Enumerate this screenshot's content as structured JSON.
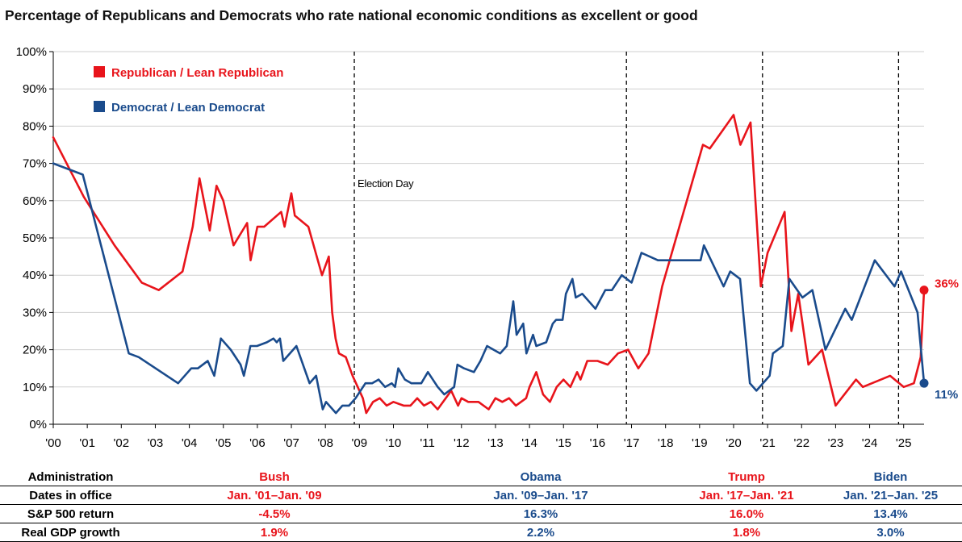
{
  "title": "Percentage of Republicans and Democrats who rate national economic conditions as excellent or good",
  "colors": {
    "republican": "#e8141b",
    "democrat": "#1a4b8c"
  },
  "chart_data": {
    "type": "line",
    "x_tick_labels": [
      "'00",
      "'01",
      "'02",
      "'03",
      "'04",
      "'05",
      "'06",
      "'07",
      "'08",
      "'09",
      "'10",
      "'11",
      "'12",
      "'13",
      "'14",
      "'15",
      "'16",
      "'17",
      "'18",
      "'19",
      "'20",
      "'21",
      "'22",
      "'23",
      "'24",
      "'25"
    ],
    "y_tick_labels": [
      "0%",
      "10%",
      "20%",
      "30%",
      "40%",
      "50%",
      "60%",
      "70%",
      "80%",
      "90%",
      "100%"
    ],
    "ylim": [
      0,
      100
    ],
    "xlim": [
      2000,
      2025.6
    ],
    "legend_position": "top-left",
    "annotation": "Election Day",
    "election_lines": [
      2008.85,
      2016.85,
      2020.85,
      2024.85
    ],
    "series": [
      {
        "name": "Republican / Lean Republican",
        "color": "#e8141b",
        "end_label": "36%",
        "points": [
          [
            2000.0,
            77
          ],
          [
            2000.9,
            61
          ],
          [
            2001.8,
            48
          ],
          [
            2002.6,
            38
          ],
          [
            2003.1,
            36
          ],
          [
            2003.8,
            41
          ],
          [
            2004.1,
            53
          ],
          [
            2004.3,
            66
          ],
          [
            2004.6,
            52
          ],
          [
            2004.8,
            64
          ],
          [
            2005.0,
            60
          ],
          [
            2005.3,
            48
          ],
          [
            2005.7,
            54
          ],
          [
            2005.8,
            44
          ],
          [
            2006.0,
            53
          ],
          [
            2006.2,
            53
          ],
          [
            2006.7,
            57
          ],
          [
            2006.8,
            53
          ],
          [
            2007.0,
            62
          ],
          [
            2007.1,
            56
          ],
          [
            2007.5,
            53
          ],
          [
            2007.9,
            40
          ],
          [
            2008.1,
            45
          ],
          [
            2008.2,
            30
          ],
          [
            2008.3,
            23
          ],
          [
            2008.4,
            19
          ],
          [
            2008.6,
            18
          ],
          [
            2008.8,
            13
          ],
          [
            2009.1,
            7
          ],
          [
            2009.2,
            3
          ],
          [
            2009.4,
            6
          ],
          [
            2009.6,
            7
          ],
          [
            2009.8,
            5
          ],
          [
            2010.0,
            6
          ],
          [
            2010.3,
            5
          ],
          [
            2010.5,
            5
          ],
          [
            2010.7,
            7
          ],
          [
            2010.9,
            5
          ],
          [
            2011.1,
            6
          ],
          [
            2011.3,
            4
          ],
          [
            2011.7,
            9
          ],
          [
            2011.9,
            5
          ],
          [
            2012.0,
            7
          ],
          [
            2012.2,
            6
          ],
          [
            2012.5,
            6
          ],
          [
            2012.8,
            4
          ],
          [
            2013.0,
            7
          ],
          [
            2013.2,
            6
          ],
          [
            2013.4,
            7
          ],
          [
            2013.6,
            5
          ],
          [
            2013.9,
            7
          ],
          [
            2014.0,
            10
          ],
          [
            2014.2,
            14
          ],
          [
            2014.4,
            8
          ],
          [
            2014.6,
            6
          ],
          [
            2014.8,
            10
          ],
          [
            2015.0,
            12
          ],
          [
            2015.2,
            10
          ],
          [
            2015.4,
            14
          ],
          [
            2015.5,
            12
          ],
          [
            2015.7,
            17
          ],
          [
            2016.0,
            17
          ],
          [
            2016.3,
            16
          ],
          [
            2016.6,
            19
          ],
          [
            2016.9,
            20
          ],
          [
            2017.2,
            15
          ],
          [
            2017.5,
            19
          ],
          [
            2017.9,
            37
          ],
          [
            2019.1,
            75
          ],
          [
            2019.3,
            74
          ],
          [
            2020.0,
            83
          ],
          [
            2020.2,
            75
          ],
          [
            2020.5,
            81
          ],
          [
            2020.8,
            37
          ],
          [
            2021.0,
            46
          ],
          [
            2021.5,
            57
          ],
          [
            2021.7,
            25
          ],
          [
            2021.9,
            35
          ],
          [
            2022.2,
            16
          ],
          [
            2022.6,
            20
          ],
          [
            2023.0,
            5
          ],
          [
            2023.6,
            12
          ],
          [
            2023.8,
            10
          ],
          [
            2024.6,
            13
          ],
          [
            2025.0,
            10
          ],
          [
            2025.3,
            11
          ],
          [
            2025.5,
            18
          ],
          [
            2025.6,
            36
          ]
        ]
      },
      {
        "name": "Democrat / Lean Democrat",
        "color": "#1a4b8c",
        "end_label": "11%",
        "points": [
          [
            2000.0,
            70
          ],
          [
            2000.9,
            67
          ],
          [
            2002.3,
            19
          ],
          [
            2002.6,
            18
          ],
          [
            2003.8,
            11
          ],
          [
            2004.2,
            15
          ],
          [
            2004.4,
            15
          ],
          [
            2004.7,
            17
          ],
          [
            2004.9,
            13
          ],
          [
            2005.1,
            23
          ],
          [
            2005.4,
            20
          ],
          [
            2005.7,
            16
          ],
          [
            2005.8,
            13
          ],
          [
            2006.0,
            21
          ],
          [
            2006.2,
            21
          ],
          [
            2006.5,
            22
          ],
          [
            2006.7,
            23
          ],
          [
            2006.8,
            22
          ],
          [
            2006.9,
            23
          ],
          [
            2007.0,
            17
          ],
          [
            2007.4,
            21
          ],
          [
            2007.8,
            11
          ],
          [
            2008.0,
            13
          ],
          [
            2008.2,
            4
          ],
          [
            2008.3,
            6
          ],
          [
            2008.6,
            3
          ],
          [
            2008.8,
            5
          ],
          [
            2009.0,
            5
          ],
          [
            2009.2,
            7
          ],
          [
            2009.5,
            11
          ],
          [
            2009.7,
            11
          ],
          [
            2009.9,
            12
          ],
          [
            2010.1,
            10
          ],
          [
            2010.3,
            11
          ],
          [
            2010.4,
            10
          ],
          [
            2010.5,
            15
          ],
          [
            2010.7,
            12
          ],
          [
            2010.9,
            11
          ],
          [
            2011.2,
            11
          ],
          [
            2011.4,
            14
          ],
          [
            2011.7,
            10
          ],
          [
            2011.9,
            8
          ],
          [
            2012.2,
            10
          ],
          [
            2012.3,
            16
          ],
          [
            2012.5,
            15
          ],
          [
            2012.8,
            14
          ],
          [
            2013.0,
            17
          ],
          [
            2013.2,
            21
          ],
          [
            2013.4,
            20
          ],
          [
            2013.6,
            19
          ],
          [
            2013.8,
            21
          ],
          [
            2014.0,
            33
          ],
          [
            2014.1,
            24
          ],
          [
            2014.3,
            27
          ],
          [
            2014.4,
            19
          ],
          [
            2014.6,
            24
          ],
          [
            2014.7,
            21
          ],
          [
            2015.0,
            22
          ],
          [
            2015.2,
            27
          ],
          [
            2015.3,
            28
          ],
          [
            2015.5,
            28
          ],
          [
            2015.6,
            35
          ],
          [
            2015.8,
            39
          ],
          [
            2015.9,
            34
          ],
          [
            2016.1,
            35
          ],
          [
            2016.5,
            31
          ],
          [
            2016.8,
            36
          ],
          [
            2017.0,
            36
          ],
          [
            2017.3,
            40
          ],
          [
            2017.6,
            38
          ],
          [
            2017.9,
            46
          ],
          [
            2018.4,
            44
          ],
          [
            2019.7,
            44
          ],
          [
            2019.8,
            48
          ],
          [
            2020.4,
            37
          ],
          [
            2020.6,
            41
          ],
          [
            2020.9,
            39
          ],
          [
            2021.2,
            11
          ],
          [
            2021.4,
            9
          ],
          [
            2021.8,
            13
          ],
          [
            2021.9,
            19
          ],
          [
            2022.2,
            21
          ],
          [
            2022.4,
            39
          ],
          [
            2022.8,
            34
          ],
          [
            2023.1,
            36
          ],
          [
            2023.5,
            20
          ],
          [
            2024.1,
            31
          ],
          [
            2024.3,
            28
          ],
          [
            2025.0,
            44
          ],
          [
            2025.6,
            37
          ],
          [
            2025.8,
            41
          ],
          [
            2026.3,
            30
          ],
          [
            2026.5,
            11
          ]
        ]
      }
    ]
  },
  "table": {
    "row_labels": [
      "Administration",
      "Dates in office",
      "S&P 500 return",
      "Real GDP growth"
    ],
    "administrations": [
      {
        "name": "Bush",
        "party": "rep",
        "dates": "Jan. '01–Jan. '09",
        "sp500": "-4.5%",
        "gdp": "1.9%"
      },
      {
        "name": "Obama",
        "party": "dem",
        "dates": "Jan. '09–Jan. '17",
        "sp500": "16.3%",
        "gdp": "2.2%"
      },
      {
        "name": "Trump",
        "party": "rep",
        "dates": "Jan. '17–Jan. '21",
        "sp500": "16.0%",
        "gdp": "1.8%"
      },
      {
        "name": "Biden",
        "party": "dem",
        "dates": "Jan. '21–Jan. '25",
        "sp500": "13.4%",
        "gdp": "3.0%"
      }
    ]
  }
}
